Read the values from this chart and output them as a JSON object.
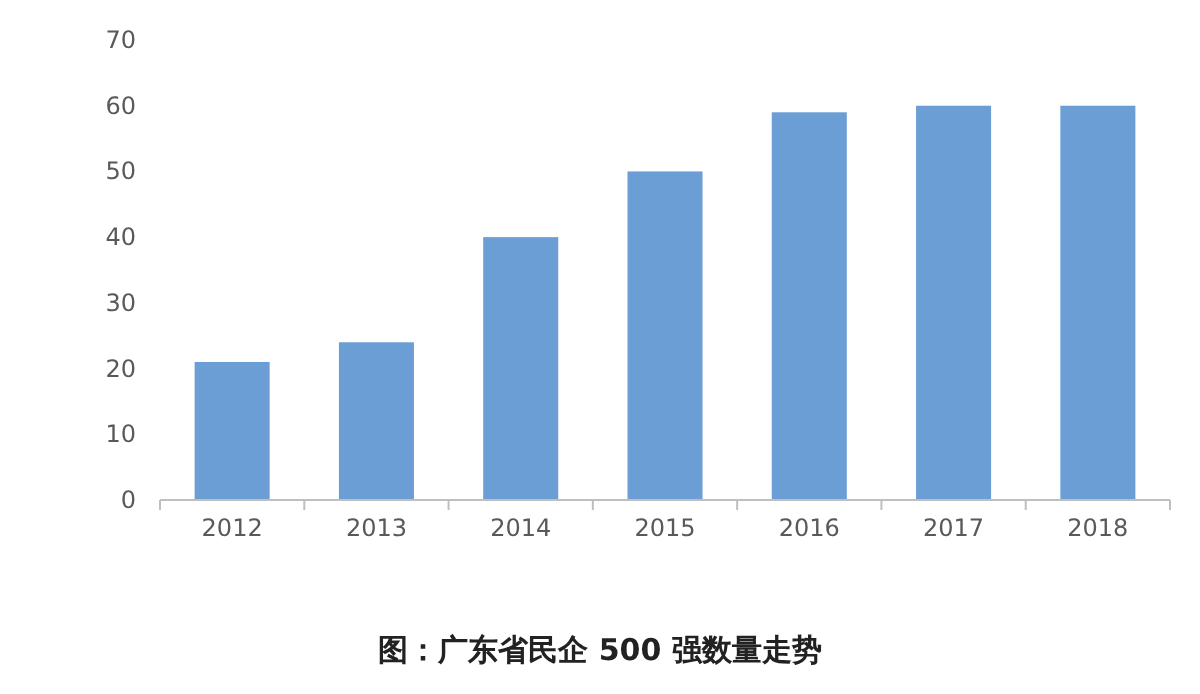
{
  "chart_data": {
    "type": "bar",
    "title": "图：广东省民企 500 强数量走势",
    "categories": [
      "2012",
      "2013",
      "2014",
      "2015",
      "2016",
      "2017",
      "2018"
    ],
    "values": [
      21,
      24,
      40,
      50,
      59,
      60,
      60
    ],
    "color": "#6a9ed4",
    "ylim": [
      0,
      70
    ],
    "yticks": [
      0,
      10,
      20,
      30,
      40,
      50,
      60,
      70
    ],
    "grid": false
  }
}
